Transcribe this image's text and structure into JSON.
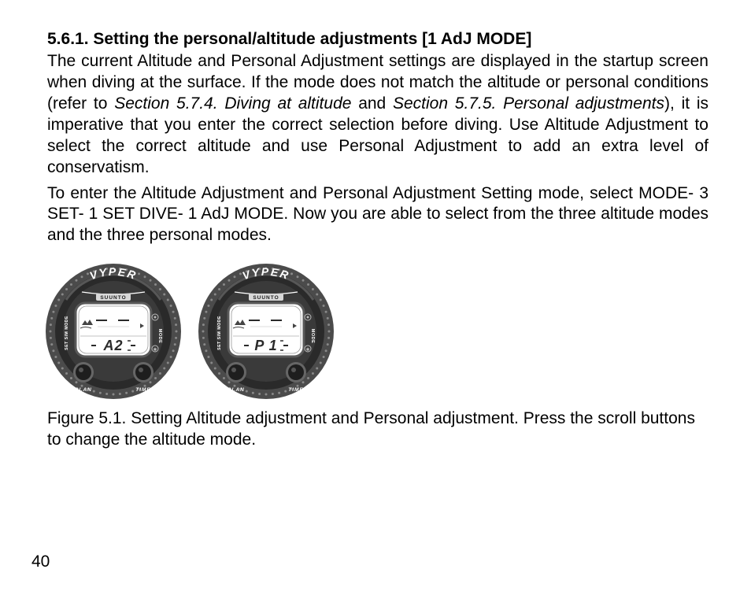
{
  "heading": "5.6.1. Setting the personal/altitude adjustments [1 AdJ MODE]",
  "para1_a": "The current Altitude and Personal Adjustment settings are displayed in the startup screen when diving at the surface. If the mode does not match the altitude or personal conditions (refer to ",
  "para1_em1": "Section 5.7.4. Diving at altitude",
  "para1_b": " and ",
  "para1_em2": "Section 5.7.5. Personal adjustments",
  "para1_c": "), it is imperative that you enter the correct selection before diving. Use Altitude Adjustment to select the correct altitude and use Personal Adjustment to add an extra level of conservatism.",
  "para2": "To enter the Altitude Adjustment and Personal Adjustment Setting mode, select MODE- 3 SET- 1 SET DIVE- 1 AdJ MODE. Now you are able to select from the three altitude modes and the three personal modes.",
  "caption": "Figure 5.1. Setting Altitude adjustment and Personal adjustment. Press the scroll buttons to change the altitude mode.",
  "pagenum": "40",
  "watches": [
    {
      "brand_top": "VYPER",
      "brand_small": "SUUNTO",
      "display_text": "A2",
      "left_label": "SET SIM MODE",
      "right_label": "MODE",
      "btn_left": "PLAN",
      "btn_right": "TIME",
      "colors": {
        "bezel_outer": "#4b4b4b",
        "bezel_dots": "#888888",
        "bezel_inner_dark": "#2a2a2a",
        "face_ring": "#3a3a3a",
        "screen_bg": "#ffffff",
        "screen_border": "#5a5a5a",
        "button": "#1e1e1e",
        "button_ring": "#666666",
        "text_light": "#ffffff",
        "segment": "#2a2a2a"
      }
    },
    {
      "brand_top": "VYPER",
      "brand_small": "SUUNTO",
      "display_text": "P 1",
      "left_label": "SET SIM MODE",
      "right_label": "MODE",
      "btn_left": "PLAN",
      "btn_right": "TIME",
      "colors": {
        "bezel_outer": "#4b4b4b",
        "bezel_dots": "#888888",
        "bezel_inner_dark": "#2a2a2a",
        "face_ring": "#3a3a3a",
        "screen_bg": "#ffffff",
        "screen_border": "#5a5a5a",
        "button": "#1e1e1e",
        "button_ring": "#666666",
        "text_light": "#ffffff",
        "segment": "#2a2a2a"
      }
    }
  ]
}
